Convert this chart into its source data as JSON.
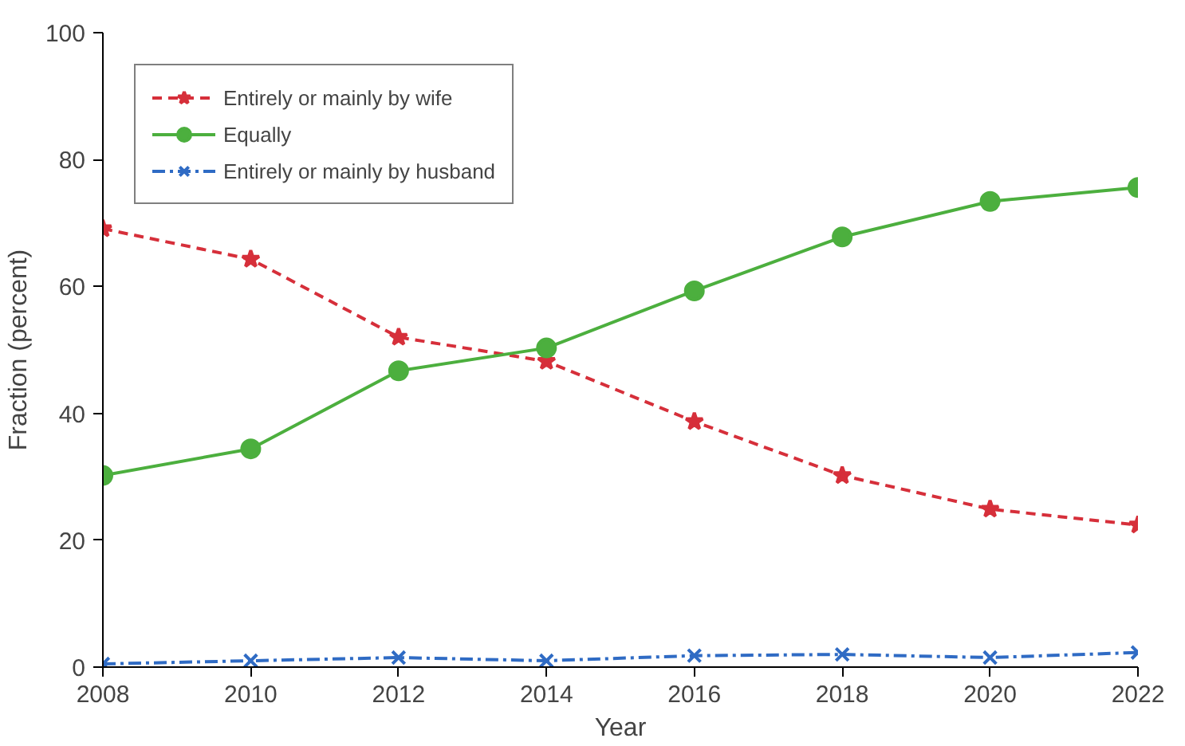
{
  "chart_data": {
    "type": "line",
    "xlabel": "Year",
    "ylabel": "Fraction (percent)",
    "x": [
      2008,
      2010,
      2012,
      2014,
      2016,
      2018,
      2020,
      2022
    ],
    "xlim": [
      2008,
      2022
    ],
    "xticks": [
      2008,
      2010,
      2012,
      2014,
      2016,
      2018,
      2020,
      2022
    ],
    "ylim": [
      0,
      100
    ],
    "yticks": [
      0,
      20,
      40,
      60,
      80,
      100
    ],
    "grid": false,
    "legend": "top left",
    "series": [
      {
        "name": "Entirely or mainly by wife",
        "color": "#d62f3a",
        "marker": "star",
        "line_style": "dashed",
        "values": [
          69.1,
          64.3,
          52,
          48.2,
          38.7,
          30.2,
          24.9,
          22.4
        ]
      },
      {
        "name": "Equally",
        "color": "#4caf3e",
        "marker": "circle",
        "line_style": "solid",
        "values": [
          30.2,
          34.4,
          46.7,
          50.3,
          59.3,
          67.8,
          73.4,
          75.6
        ]
      },
      {
        "name": "Entirely or mainly by husband",
        "color": "#2f6bc4",
        "marker": "cross",
        "line_style": "dashdot",
        "values": [
          0.5,
          1,
          1.5,
          1,
          1.8,
          2,
          1.5,
          2.3
        ]
      }
    ]
  }
}
